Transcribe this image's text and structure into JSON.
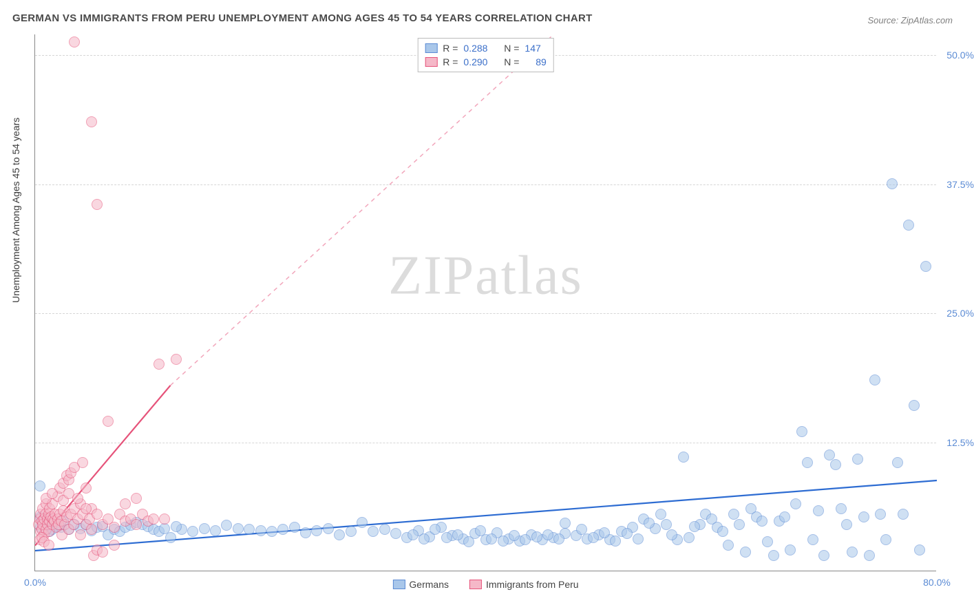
{
  "title": "GERMAN VS IMMIGRANTS FROM PERU UNEMPLOYMENT AMONG AGES 45 TO 54 YEARS CORRELATION CHART",
  "source": "Source: ZipAtlas.com",
  "y_axis_label": "Unemployment Among Ages 45 to 54 years",
  "watermark_a": "ZIP",
  "watermark_b": "atlas",
  "chart": {
    "type": "scatter",
    "background_color": "#ffffff",
    "grid_color": "#d6d6d6",
    "axis_color": "#888888",
    "xlim": [
      0,
      80
    ],
    "ylim": [
      0,
      52
    ],
    "x_ticks": [
      {
        "v": 0,
        "label": "0.0%"
      },
      {
        "v": 80,
        "label": "80.0%"
      }
    ],
    "y_ticks": [
      {
        "v": 12.5,
        "label": "12.5%"
      },
      {
        "v": 25.0,
        "label": "25.0%"
      },
      {
        "v": 37.5,
        "label": "37.5%"
      },
      {
        "v": 50.0,
        "label": "50.0%"
      }
    ],
    "marker_radius": 8,
    "marker_opacity": 0.55,
    "series": [
      {
        "id": "germans",
        "label": "Germans",
        "R": "0.288",
        "N": "147",
        "fill": "#a9c7ea",
        "stroke": "#5b8bd4",
        "trend": {
          "x1": 0,
          "y1": 2.0,
          "x2": 80,
          "y2": 8.8,
          "color": "#2d6cd2",
          "width": 2.2,
          "dash": "none"
        },
        "points": [
          [
            0.4,
            8.2
          ],
          [
            0.5,
            5.2
          ],
          [
            0.5,
            4.2
          ],
          [
            0.7,
            4.8
          ],
          [
            0.8,
            4.4
          ],
          [
            1.0,
            4.6
          ],
          [
            1.1,
            4.1
          ],
          [
            1.2,
            5.0
          ],
          [
            1.3,
            3.8
          ],
          [
            1.4,
            4.6
          ],
          [
            1.5,
            4.0
          ],
          [
            2,
            4.3
          ],
          [
            2.3,
            4.2
          ],
          [
            3,
            4.0
          ],
          [
            3.5,
            4.5
          ],
          [
            4,
            4.1
          ],
          [
            5,
            3.9
          ],
          [
            5.5,
            4.2
          ],
          [
            6,
            4.3
          ],
          [
            6.5,
            3.5
          ],
          [
            7,
            4.0
          ],
          [
            7.5,
            3.8
          ],
          [
            8,
            4.2
          ],
          [
            8.5,
            4.4
          ],
          [
            9,
            4.7
          ],
          [
            9.5,
            4.5
          ],
          [
            10,
            4.3
          ],
          [
            10.5,
            4.0
          ],
          [
            11,
            3.8
          ],
          [
            11.5,
            4.1
          ],
          [
            12,
            3.2
          ],
          [
            13,
            4.0
          ],
          [
            14,
            3.8
          ],
          [
            15,
            4.1
          ],
          [
            16,
            3.9
          ],
          [
            17,
            4.4
          ],
          [
            18,
            4.1
          ],
          [
            19,
            4.0
          ],
          [
            20,
            3.9
          ],
          [
            21,
            3.8
          ],
          [
            22,
            4.0
          ],
          [
            23,
            4.2
          ],
          [
            24,
            3.7
          ],
          [
            25,
            3.9
          ],
          [
            26,
            4.1
          ],
          [
            27,
            3.5
          ],
          [
            28,
            3.8
          ],
          [
            29,
            4.7
          ],
          [
            30,
            3.8
          ],
          [
            31,
            4.0
          ],
          [
            32,
            3.6
          ],
          [
            33,
            3.2
          ],
          [
            34,
            3.9
          ],
          [
            35,
            3.3
          ],
          [
            36,
            4.2
          ],
          [
            37,
            3.4
          ],
          [
            38,
            3.1
          ],
          [
            39,
            3.6
          ],
          [
            40,
            3.0
          ],
          [
            41,
            3.7
          ],
          [
            42,
            3.1
          ],
          [
            43,
            2.9
          ],
          [
            44,
            3.5
          ],
          [
            45,
            3.0
          ],
          [
            46,
            3.2
          ],
          [
            47,
            3.6
          ],
          [
            48,
            3.4
          ],
          [
            49,
            3.1
          ],
          [
            50,
            3.5
          ],
          [
            51,
            3.0
          ],
          [
            52,
            3.8
          ],
          [
            53,
            4.2
          ],
          [
            54,
            5.0
          ],
          [
            55,
            4.1
          ],
          [
            55.5,
            5.5
          ],
          [
            56,
            4.5
          ],
          [
            57,
            3.0
          ],
          [
            57.5,
            11.0
          ],
          [
            58,
            3.2
          ],
          [
            59,
            4.5
          ],
          [
            59.5,
            5.5
          ],
          [
            60,
            5.0
          ],
          [
            60.5,
            4.2
          ],
          [
            61,
            3.8
          ],
          [
            61.5,
            2.5
          ],
          [
            62,
            5.5
          ],
          [
            62.5,
            4.5
          ],
          [
            63,
            1.8
          ],
          [
            63.5,
            6.0
          ],
          [
            64,
            5.2
          ],
          [
            64.5,
            4.8
          ],
          [
            65,
            2.8
          ],
          [
            65.5,
            1.5
          ],
          [
            66,
            4.8
          ],
          [
            66.5,
            5.2
          ],
          [
            67,
            2.0
          ],
          [
            67.5,
            6.5
          ],
          [
            68,
            13.5
          ],
          [
            68.5,
            10.5
          ],
          [
            69,
            3.0
          ],
          [
            69.5,
            5.8
          ],
          [
            70,
            1.5
          ],
          [
            70.5,
            11.2
          ],
          [
            71,
            10.3
          ],
          [
            71.5,
            6.0
          ],
          [
            72,
            4.5
          ],
          [
            72.5,
            1.8
          ],
          [
            73,
            10.8
          ],
          [
            73.5,
            5.2
          ],
          [
            74,
            1.5
          ],
          [
            74.5,
            18.5
          ],
          [
            75,
            5.5
          ],
          [
            75.5,
            3.0
          ],
          [
            76,
            37.5
          ],
          [
            76.5,
            10.5
          ],
          [
            77,
            5.5
          ],
          [
            77.5,
            33.5
          ],
          [
            78,
            16.0
          ],
          [
            78.5,
            2.0
          ],
          [
            79,
            29.5
          ],
          [
            47,
            4.6
          ],
          [
            48.5,
            4.0
          ],
          [
            49.5,
            3.2
          ],
          [
            50.5,
            3.7
          ],
          [
            51.5,
            2.9
          ],
          [
            52.5,
            3.6
          ],
          [
            53.5,
            3.1
          ],
          [
            54.5,
            4.6
          ],
          [
            56.5,
            3.5
          ],
          [
            58.5,
            4.3
          ],
          [
            33.5,
            3.5
          ],
          [
            34.5,
            3.1
          ],
          [
            35.5,
            4.0
          ],
          [
            36.5,
            3.2
          ],
          [
            37.5,
            3.5
          ],
          [
            38.5,
            2.8
          ],
          [
            39.5,
            3.9
          ],
          [
            40.5,
            3.1
          ],
          [
            41.5,
            2.9
          ],
          [
            42.5,
            3.4
          ],
          [
            43.5,
            3.0
          ],
          [
            44.5,
            3.3
          ],
          [
            45.5,
            3.5
          ],
          [
            46.5,
            3.1
          ],
          [
            2.5,
            4.8
          ],
          [
            4.5,
            4.5
          ],
          [
            12.5,
            4.3
          ]
        ]
      },
      {
        "id": "peru",
        "label": "Immigrants from Peru",
        "R": "0.290",
        "N": "89",
        "fill": "#f5b8c8",
        "stroke": "#e6537a",
        "trend_solid": {
          "x1": 0,
          "y1": 2.5,
          "x2": 12,
          "y2": 18.0,
          "color": "#e6537a",
          "width": 2.2
        },
        "trend_dash": {
          "x1": 12,
          "y1": 18.0,
          "x2": 46,
          "y2": 52.0,
          "color": "#f2a6bb",
          "width": 1.5
        },
        "points": [
          [
            0.3,
            4.5
          ],
          [
            0.4,
            5.0
          ],
          [
            0.5,
            3.8
          ],
          [
            0.5,
            5.5
          ],
          [
            0.6,
            4.8
          ],
          [
            0.6,
            4.0
          ],
          [
            0.7,
            4.5
          ],
          [
            0.7,
            6.0
          ],
          [
            0.8,
            5.0
          ],
          [
            0.8,
            3.5
          ],
          [
            0.9,
            5.5
          ],
          [
            1.0,
            4.0
          ],
          [
            1.0,
            6.5
          ],
          [
            1.1,
            5.0
          ],
          [
            1.1,
            4.5
          ],
          [
            1.2,
            5.5
          ],
          [
            1.2,
            3.8
          ],
          [
            1.3,
            6.0
          ],
          [
            1.3,
            4.8
          ],
          [
            1.4,
            5.2
          ],
          [
            1.5,
            4.5
          ],
          [
            1.5,
            6.5
          ],
          [
            1.6,
            5.0
          ],
          [
            1.7,
            4.8
          ],
          [
            1.8,
            5.5
          ],
          [
            1.9,
            4.2
          ],
          [
            2.0,
            5.0
          ],
          [
            2.0,
            7.2
          ],
          [
            2.1,
            4.5
          ],
          [
            2.2,
            5.5
          ],
          [
            2.2,
            8.0
          ],
          [
            2.3,
            4.8
          ],
          [
            2.4,
            3.5
          ],
          [
            2.5,
            5.8
          ],
          [
            2.5,
            8.5
          ],
          [
            2.6,
            4.5
          ],
          [
            2.8,
            5.2
          ],
          [
            2.8,
            9.2
          ],
          [
            3.0,
            4.0
          ],
          [
            3.0,
            8.8
          ],
          [
            3.2,
            5.5
          ],
          [
            3.2,
            9.5
          ],
          [
            3.4,
            4.5
          ],
          [
            3.5,
            6.0
          ],
          [
            3.5,
            10.0
          ],
          [
            3.8,
            5.0
          ],
          [
            4.0,
            3.5
          ],
          [
            4.0,
            6.5
          ],
          [
            4.2,
            10.5
          ],
          [
            4.2,
            5.5
          ],
          [
            4.5,
            4.5
          ],
          [
            4.5,
            8.0
          ],
          [
            4.8,
            5.0
          ],
          [
            5.0,
            4.0
          ],
          [
            5.0,
            6.0
          ],
          [
            5.2,
            1.5
          ],
          [
            5.5,
            5.5
          ],
          [
            5.5,
            2.0
          ],
          [
            6.0,
            4.5
          ],
          [
            6.0,
            1.8
          ],
          [
            6.5,
            5.0
          ],
          [
            6.5,
            14.5
          ],
          [
            7.0,
            4.2
          ],
          [
            7.0,
            2.5
          ],
          [
            7.5,
            5.5
          ],
          [
            8.0,
            4.8
          ],
          [
            8.0,
            6.5
          ],
          [
            8.5,
            5.0
          ],
          [
            9.0,
            4.5
          ],
          [
            9.0,
            7.0
          ],
          [
            9.5,
            5.5
          ],
          [
            10.0,
            4.8
          ],
          [
            10.5,
            5.0
          ],
          [
            11.0,
            20.0
          ],
          [
            11.5,
            5.0
          ],
          [
            12.5,
            20.5
          ],
          [
            3.5,
            51.2
          ],
          [
            5.0,
            43.5
          ],
          [
            5.5,
            35.5
          ],
          [
            1.0,
            7.0
          ],
          [
            1.5,
            7.5
          ],
          [
            2.5,
            6.8
          ],
          [
            3.0,
            7.5
          ],
          [
            3.8,
            7.0
          ],
          [
            4.5,
            6.0
          ],
          [
            0.4,
            3.0
          ],
          [
            0.6,
            3.2
          ],
          [
            0.8,
            2.8
          ],
          [
            1.2,
            2.5
          ]
        ]
      }
    ]
  }
}
